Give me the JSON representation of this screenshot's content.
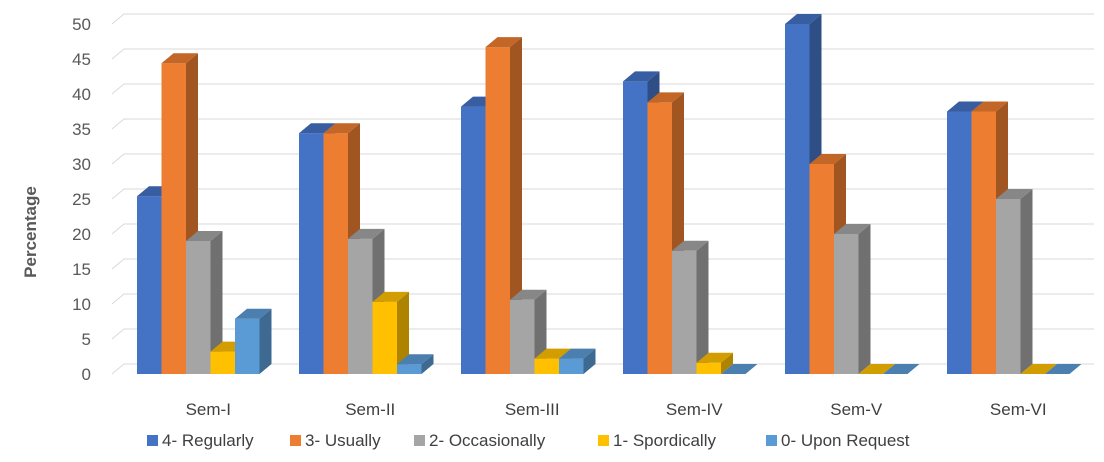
{
  "chart_data": {
    "type": "bar",
    "title": "",
    "xlabel": "",
    "ylabel": "Percentage",
    "ylim": [
      0,
      50
    ],
    "yticks": [
      0,
      5,
      10,
      15,
      20,
      25,
      30,
      35,
      40,
      45,
      50
    ],
    "grid": true,
    "legend_position": "bottom",
    "style": "3d-clustered-column",
    "categories": [
      "Sem-I",
      "Sem-II",
      "Sem-III",
      "Sem-IV",
      "Sem-V",
      "Sem-VI"
    ],
    "series": [
      {
        "name": "4- Regularly",
        "color": "#4472C4",
        "values": [
          25.4,
          34.4,
          38.2,
          41.8,
          50.0,
          37.5
        ]
      },
      {
        "name": "3- Usually",
        "color": "#ED7D31",
        "values": [
          44.4,
          34.4,
          46.7,
          38.8,
          30.0,
          37.5
        ]
      },
      {
        "name": "2- Occasionally",
        "color": "#A5A5A5",
        "values": [
          19.0,
          19.3,
          10.6,
          17.6,
          20.0,
          25.0
        ]
      },
      {
        "name": "1- Spordically",
        "color": "#FFC000",
        "values": [
          3.2,
          10.3,
          2.2,
          1.6,
          0,
          0
        ]
      },
      {
        "name": "0- Upon Request",
        "color": "#5B9BD5",
        "values": [
          7.9,
          1.4,
          2.2,
          0,
          0,
          0
        ]
      }
    ]
  }
}
